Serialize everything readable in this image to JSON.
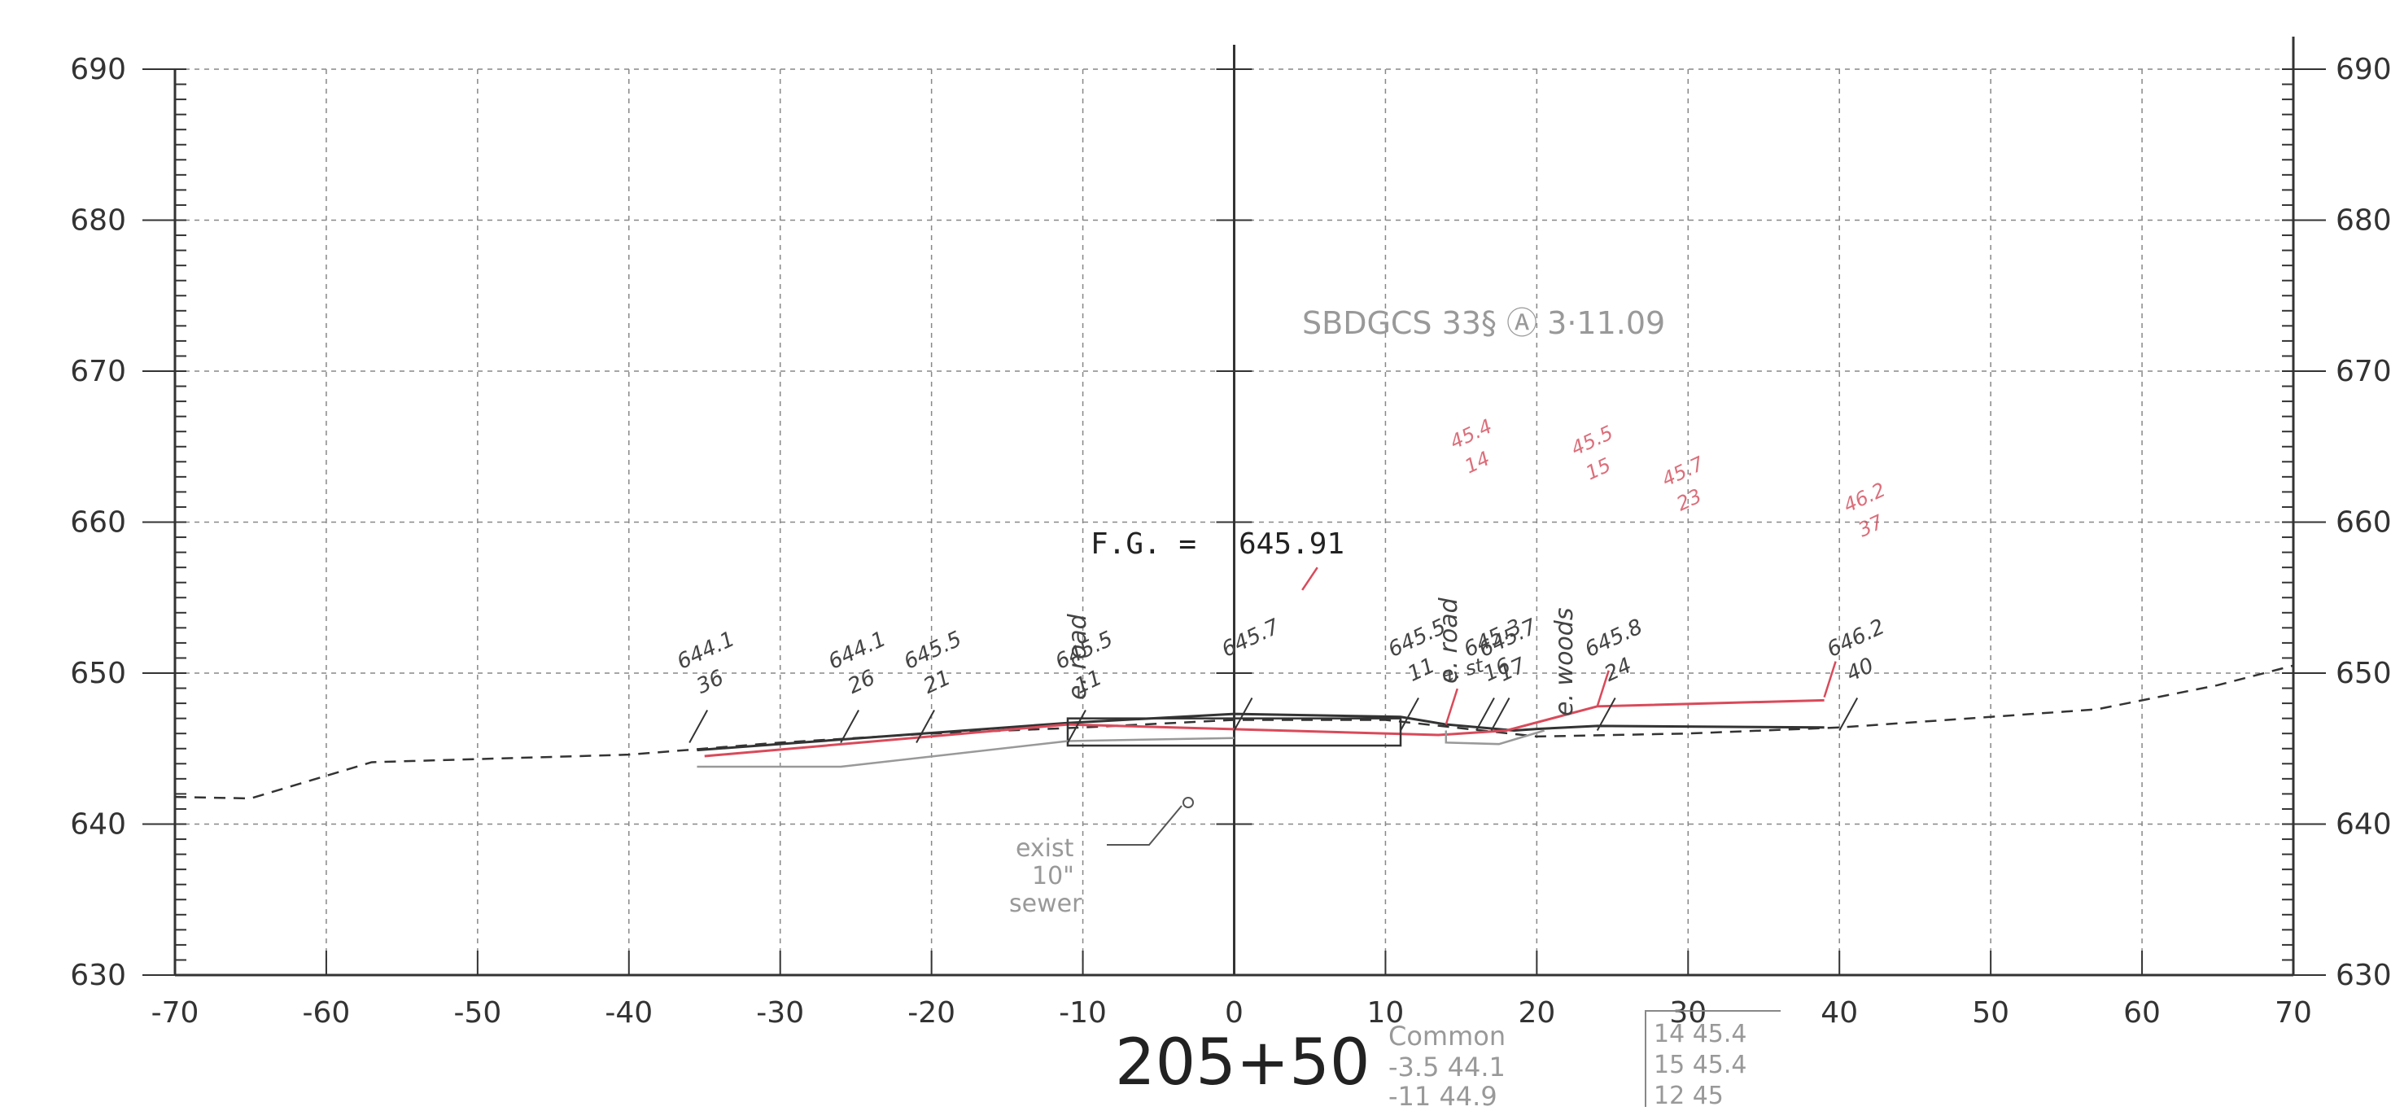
{
  "axes": {
    "x_ticks": [
      "-70",
      "-60",
      "-50",
      "-40",
      "-30",
      "-20",
      "-10",
      "0",
      "10",
      "20",
      "30",
      "40",
      "50",
      "60",
      "70"
    ],
    "y_ticks": [
      "630",
      "640",
      "650",
      "660",
      "670",
      "680",
      "690"
    ],
    "x_range": [
      -70,
      70
    ],
    "y_range": [
      630,
      690
    ]
  },
  "station_label": "205+50",
  "finish_grade": {
    "label": "F.G. =",
    "value": "645.91"
  },
  "sewer_note": {
    "line1": "exist",
    "line2": "10\"",
    "line3": "sewer"
  },
  "survey_note": "SBDGCS 33§ Ⓐ 3·11.09",
  "edge_labels": {
    "road_left": "e. road",
    "road_right": "e. road",
    "woods": "e. woods",
    "street": "e. st"
  },
  "grade_labels": [
    {
      "elev": "644.1",
      "dist": "36"
    },
    {
      "elev": "644.1",
      "dist": "26"
    },
    {
      "elev": "645.5",
      "dist": "21"
    },
    {
      "elev": "645.5",
      "dist": "11"
    },
    {
      "elev": "645.7",
      "dist": ""
    },
    {
      "elev": "645.5",
      "dist": "11"
    },
    {
      "elev": "645.3",
      "dist": "16"
    },
    {
      "elev": "645.7",
      "dist": "17"
    },
    {
      "elev": "645.8",
      "dist": "24"
    },
    {
      "elev": "646.2",
      "dist": "40"
    }
  ],
  "red_grade_labels": [
    {
      "elev": "45.4",
      "dist": "14"
    },
    {
      "elev": "45.5",
      "dist": "15"
    },
    {
      "elev": "45.7",
      "dist": "23"
    },
    {
      "elev": "46.2",
      "dist": "37"
    }
  ],
  "bottom_notes": {
    "common": "Common",
    "common_rows": [
      "-3.5  44.1",
      "-11  44.9"
    ],
    "boxed_rows": [
      "14  45.4",
      "15  45.4",
      "12  45"
    ]
  },
  "existing_ground": [
    [
      -70,
      641.8
    ],
    [
      -65,
      641.7
    ],
    [
      -57,
      644.1
    ],
    [
      -40,
      644.6
    ],
    [
      -30,
      645.4
    ],
    [
      -20,
      646.0
    ],
    [
      -10,
      646.4
    ],
    [
      0,
      646.9
    ],
    [
      10,
      646.9
    ],
    [
      20,
      645.8
    ],
    [
      30,
      646.0
    ],
    [
      40,
      646.4
    ],
    [
      50,
      647.1
    ],
    [
      57,
      647.6
    ],
    [
      65,
      649.2
    ],
    [
      70,
      650.5
    ]
  ],
  "proposed_grade": [
    [
      -35.5,
      644.9
    ],
    [
      -11,
      646.7
    ],
    [
      0,
      647.3
    ],
    [
      11,
      647.1
    ],
    [
      14,
      646.6
    ],
    [
      18.5,
      646.2
    ],
    [
      20,
      646.3
    ],
    [
      24,
      646.5
    ],
    [
      39,
      646.4
    ]
  ],
  "red_grade": [
    [
      -35,
      644.5
    ],
    [
      -11,
      646.6
    ],
    [
      13.5,
      645.9
    ],
    [
      18,
      646.2
    ],
    [
      24,
      647.8
    ],
    [
      39,
      648.2
    ]
  ],
  "colors": {
    "ink": "#333333",
    "red": "#d94a5a",
    "grid": "#888888"
  }
}
